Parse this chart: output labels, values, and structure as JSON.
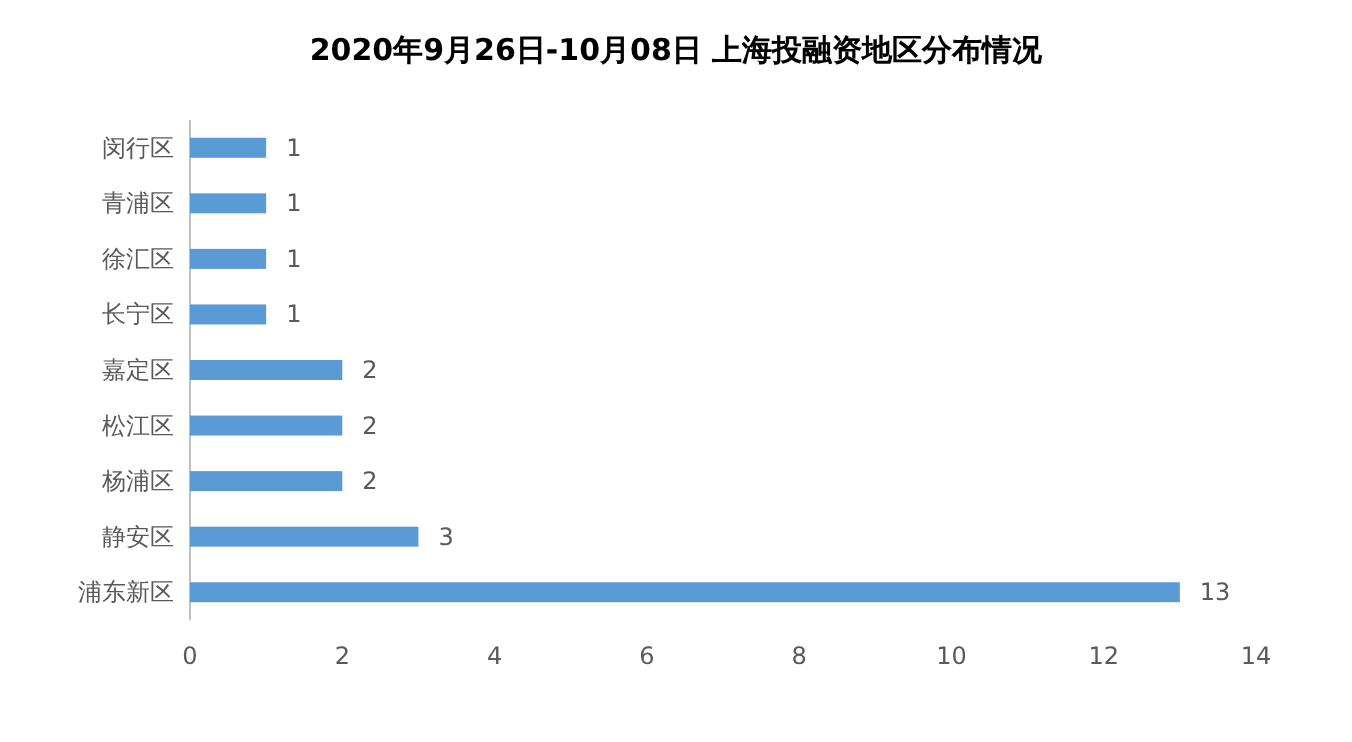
{
  "chart_data": {
    "type": "bar",
    "orientation": "horizontal",
    "title": "2020年9月26日-10月08日  上海投融资地区分布情况",
    "categories": [
      "闵行区",
      "青浦区",
      "徐汇区",
      "长宁区",
      "嘉定区",
      "松江区",
      "杨浦区",
      "静安区",
      "浦东新区"
    ],
    "values": [
      1,
      1,
      1,
      1,
      2,
      2,
      2,
      3,
      13
    ],
    "color": "#5b9bd5",
    "xlim": [
      0,
      14
    ],
    "xticks": [
      0,
      2,
      4,
      6,
      8,
      10,
      12,
      14
    ],
    "grid": false,
    "data_labels": true
  }
}
